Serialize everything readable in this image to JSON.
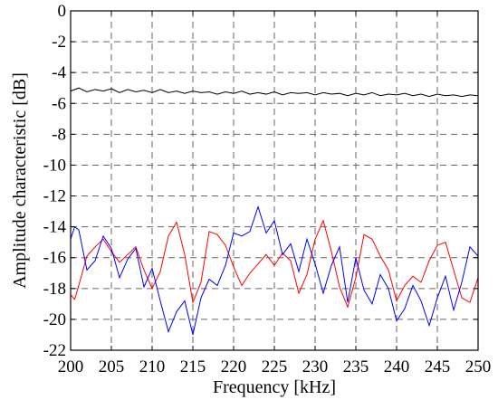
{
  "chart_data": {
    "type": "line",
    "title": "",
    "xlabel": "Frequency [kHz]",
    "ylabel": "Amplitude characteristic [dB]",
    "xlim": [
      200,
      250
    ],
    "ylim": [
      -22,
      0
    ],
    "xticks": [
      200,
      205,
      210,
      215,
      220,
      225,
      230,
      235,
      240,
      245,
      250
    ],
    "yticks": [
      0,
      -2,
      -4,
      -6,
      -8,
      -10,
      -12,
      -14,
      -16,
      -18,
      -20,
      -22
    ],
    "grid": true,
    "legend": "none",
    "series": [
      {
        "color": "#000000",
        "x": [
          200,
          201,
          202,
          203,
          204,
          205,
          206,
          207,
          208,
          209,
          210,
          211,
          212,
          213,
          214,
          215,
          216,
          217,
          218,
          219,
          220,
          221,
          222,
          223,
          224,
          225,
          226,
          227,
          228,
          229,
          230,
          231,
          232,
          233,
          234,
          235,
          236,
          237,
          238,
          239,
          240,
          241,
          242,
          243,
          244,
          245,
          246,
          247,
          248,
          249,
          250
        ],
        "y": [
          -5.2,
          -5.0,
          -5.25,
          -5.1,
          -5.2,
          -5.05,
          -5.3,
          -5.1,
          -5.25,
          -5.15,
          -5.3,
          -5.1,
          -5.3,
          -5.2,
          -5.35,
          -5.2,
          -5.3,
          -5.25,
          -5.4,
          -5.25,
          -5.35,
          -5.2,
          -5.4,
          -5.3,
          -5.4,
          -5.25,
          -5.45,
          -5.3,
          -5.35,
          -5.3,
          -5.45,
          -5.3,
          -5.4,
          -5.35,
          -5.5,
          -5.35,
          -5.45,
          -5.3,
          -5.5,
          -5.4,
          -5.45,
          -5.35,
          -5.5,
          -5.4,
          -5.55,
          -5.4,
          -5.5,
          -5.45,
          -5.55,
          -5.45,
          -5.5
        ]
      },
      {
        "color": "#ff0000",
        "x": [
          200,
          200.5,
          201,
          202,
          203,
          204,
          205,
          206,
          207,
          208,
          209,
          210,
          211,
          212,
          213,
          214,
          215,
          216,
          217,
          218,
          219,
          220,
          221,
          222,
          223,
          224,
          225,
          226,
          227,
          228,
          229,
          230,
          231,
          232,
          233,
          234,
          235,
          236,
          237,
          238,
          239,
          240,
          241,
          242,
          243,
          244,
          245,
          246,
          247,
          248,
          249,
          250
        ],
        "y": [
          -18.4,
          -18.7,
          -17.8,
          -15.9,
          -15.3,
          -14.8,
          -15.6,
          -16.3,
          -15.8,
          -15.3,
          -16.8,
          -18.0,
          -16.9,
          -14.6,
          -13.7,
          -15.8,
          -18.9,
          -17.6,
          -14.3,
          -14.5,
          -15.2,
          -16.6,
          -17.8,
          -17.0,
          -16.4,
          -15.8,
          -16.5,
          -15.7,
          -16.2,
          -18.3,
          -17.1,
          -14.8,
          -13.6,
          -15.6,
          -17.9,
          -19.2,
          -17.3,
          -14.5,
          -14.8,
          -15.9,
          -16.8,
          -18.8,
          -17.8,
          -17.2,
          -17.6,
          -16.2,
          -15.2,
          -15.0,
          -16.8,
          -18.6,
          -18.9,
          -17.3
        ]
      },
      {
        "color": "#0000ff",
        "x": [
          200,
          200.5,
          201,
          202,
          203,
          204,
          205,
          206,
          207,
          208,
          209,
          210,
          211,
          212,
          213,
          214,
          215,
          216,
          217,
          218,
          219,
          220,
          221,
          222,
          223,
          224,
          225,
          226,
          227,
          228,
          229,
          230,
          231,
          232,
          233,
          234,
          235,
          236,
          237,
          238,
          239,
          240,
          241,
          242,
          243,
          244,
          245,
          246,
          247,
          248,
          249,
          250
        ],
        "y": [
          -14.8,
          -14.0,
          -14.2,
          -16.8,
          -16.2,
          -14.6,
          -15.4,
          -17.3,
          -16.1,
          -15.4,
          -17.9,
          -16.7,
          -18.8,
          -20.8,
          -19.5,
          -18.8,
          -21.0,
          -18.6,
          -17.4,
          -17.8,
          -16.5,
          -14.4,
          -14.6,
          -14.3,
          -12.7,
          -14.4,
          -13.6,
          -15.8,
          -15.1,
          -16.9,
          -14.8,
          -16.4,
          -18.3,
          -16.5,
          -15.3,
          -18.9,
          -16.0,
          -18.1,
          -19.0,
          -17.1,
          -18.0,
          -20.1,
          -19.3,
          -17.8,
          -18.8,
          -20.4,
          -18.6,
          -17.2,
          -19.4,
          -17.6,
          -15.3,
          -15.9
        ]
      }
    ]
  }
}
